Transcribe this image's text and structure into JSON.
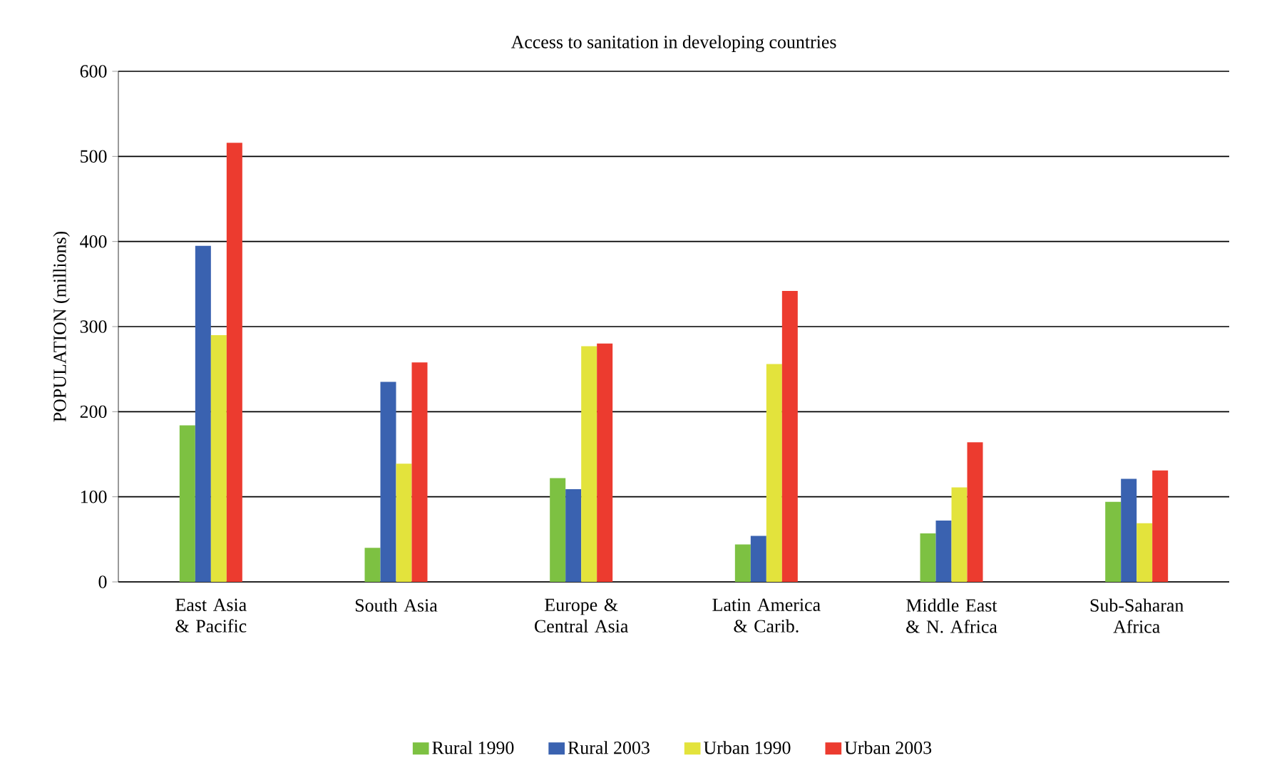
{
  "chart_data": {
    "type": "bar",
    "title": "Access to sanitation in developing countries",
    "ylabel": "POPULATION (millions)",
    "categories": [
      "East Asia & Pacific",
      "South Asia",
      "Europe & Central Asia",
      "Latin America & Carib.",
      "Middle East & N. Africa",
      "Sub-Saharan Africa"
    ],
    "series": [
      {
        "name": "Rural 1990",
        "color": "#7dc142",
        "values": [
          184,
          40,
          122,
          44,
          57,
          94
        ]
      },
      {
        "name": "Rural 2003",
        "color": "#3a62b0",
        "values": [
          395,
          235,
          109,
          54,
          72,
          121
        ]
      },
      {
        "name": "Urban 1990",
        "color": "#e3e33c",
        "values": [
          290,
          139,
          277,
          256,
          111,
          69
        ]
      },
      {
        "name": "Urban 2003",
        "color": "#ec3b2f",
        "values": [
          516,
          258,
          280,
          342,
          164,
          131
        ]
      }
    ],
    "ylim": [
      0,
      600
    ],
    "yticks": [
      0,
      100,
      200,
      300,
      400,
      500,
      600
    ],
    "grid": "y",
    "legend": "bottom"
  }
}
